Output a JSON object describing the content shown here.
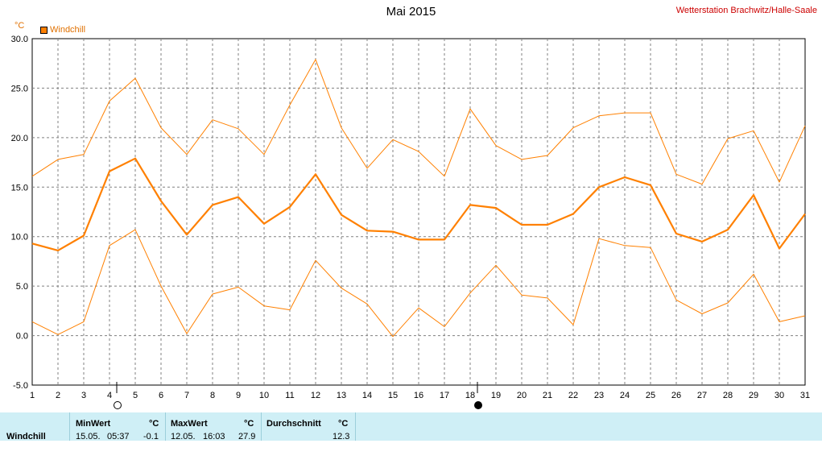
{
  "header": {
    "title": "Mai 2015",
    "station": "Wetterstation Brachwitz/Halle-Saale",
    "unit": "°C",
    "legend_label": "Windchill"
  },
  "colors": {
    "line": "#ff8000",
    "grid": "#808080",
    "footer_bg": "#cfeff6",
    "station_text": "#cc0000"
  },
  "chart_data": {
    "type": "line",
    "x": [
      1,
      2,
      3,
      4,
      5,
      6,
      7,
      8,
      9,
      10,
      11,
      12,
      13,
      14,
      15,
      16,
      17,
      18,
      19,
      20,
      21,
      22,
      23,
      24,
      25,
      26,
      27,
      28,
      29,
      30,
      31
    ],
    "xlabel": "",
    "ylabel": "°C",
    "ylim": [
      -5,
      30
    ],
    "yticks": [
      "30.0",
      "25.0",
      "20.0",
      "15.0",
      "10.0",
      "5.0",
      "0.0",
      "-5.0"
    ],
    "grid": true,
    "legend": "top-left",
    "series": [
      {
        "name": "Windchill",
        "role": "max",
        "values": [
          16.1,
          17.8,
          18.3,
          23.7,
          26.0,
          21.0,
          18.3,
          21.8,
          20.9,
          18.3,
          23.3,
          27.9,
          21.0,
          16.9,
          19.8,
          18.6,
          16.1,
          22.9,
          19.2,
          17.8,
          18.2,
          21.0,
          22.2,
          22.5,
          22.5,
          16.3,
          15.3,
          19.9,
          20.7,
          15.5,
          21.2
        ]
      },
      {
        "name": "Windchill",
        "role": "avg",
        "values": [
          9.3,
          8.6,
          10.1,
          16.6,
          17.9,
          13.6,
          10.2,
          13.2,
          14.0,
          11.3,
          13.0,
          16.3,
          12.2,
          10.6,
          10.5,
          9.7,
          9.7,
          13.2,
          12.9,
          11.2,
          11.2,
          12.3,
          15.0,
          16.0,
          15.2,
          10.3,
          9.5,
          10.7,
          14.2,
          8.8,
          12.3
        ]
      },
      {
        "name": "Windchill",
        "role": "min",
        "values": [
          1.4,
          0.1,
          1.4,
          9.1,
          10.7,
          5.0,
          0.2,
          4.2,
          4.9,
          3.0,
          2.6,
          7.6,
          4.8,
          3.2,
          -0.1,
          2.8,
          0.9,
          4.3,
          7.1,
          4.1,
          3.8,
          1.1,
          9.8,
          9.1,
          8.9,
          3.6,
          2.2,
          3.3,
          6.2,
          1.4,
          2.0
        ]
      }
    ],
    "moon_markers": [
      {
        "day": 4,
        "phase": "full"
      },
      {
        "day": 18,
        "phase": "new"
      }
    ]
  },
  "footer": {
    "row_label": "Windchill",
    "min": {
      "label": "MinWert",
      "unit": "°C",
      "date": "15.05.",
      "time": "05:37",
      "value": "-0.1"
    },
    "max": {
      "label": "MaxWert",
      "unit": "°C",
      "date": "12.05.",
      "time": "16:03",
      "value": "27.9"
    },
    "avg": {
      "label": "Durchschnitt",
      "unit": "°C",
      "value": "12.3"
    }
  }
}
